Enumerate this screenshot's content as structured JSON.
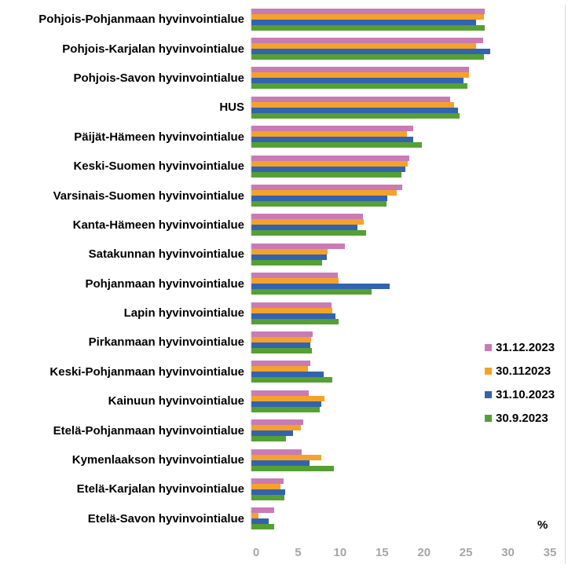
{
  "chart_data": {
    "type": "bar",
    "orientation": "horizontal",
    "title": "",
    "xlabel": "%",
    "ylabel": "",
    "xlim": [
      0,
      35
    ],
    "xticks": [
      0,
      5,
      10,
      15,
      20,
      25,
      30,
      35
    ],
    "grid": false,
    "legend_position": "right-middle",
    "categories": [
      "Pohjois-Pohjanmaan hyvinvointialue",
      "Pohjois-Karjalan hyvinvointialue",
      "Pohjois-Savon hyvinvointialue",
      "HUS",
      "Päijät-Hämeen hyvinvointialue",
      "Keski-Suomen hyvinvointialue",
      "Varsinais-Suomen hyvinvointialue",
      "Kanta-Hämeen hyvinvointialue",
      "Satakunnan hyvinvointialue",
      "Pohjanmaan hyvinvointialue",
      "Lapin hyvinvointialue",
      "Pirkanmaan hyvinvointialue",
      "Keski-Pohjanmaan hyvinvointialue",
      "Kainuun hyvinvointialue",
      "Etelä-Pohjanmaan hyvinvointialue",
      "Kymenlaakson hyvinvointialue",
      "Etelä-Karjalan hyvinvointialue",
      "Etelä-Savon hyvinvointialue"
    ],
    "series": [
      {
        "name": "31.12.2023",
        "color": "#c97bb5",
        "values": [
          27.8,
          27.6,
          25.9,
          23.7,
          19.3,
          18.8,
          18.0,
          13.3,
          11.1,
          10.3,
          9.5,
          7.3,
          7.0,
          6.8,
          6.2,
          6.0,
          3.8,
          2.7
        ]
      },
      {
        "name": "30.112023",
        "color": "#f5a228",
        "values": [
          27.7,
          26.8,
          25.9,
          24.1,
          18.5,
          18.6,
          17.3,
          13.4,
          9.1,
          10.4,
          9.6,
          7.1,
          6.7,
          8.7,
          5.9,
          8.3,
          3.5,
          0.8
        ]
      },
      {
        "name": "31.10.2023",
        "color": "#3263af",
        "values": [
          26.8,
          28.4,
          25.3,
          24.6,
          19.3,
          18.3,
          16.2,
          12.6,
          9.0,
          16.5,
          10.0,
          7.0,
          8.6,
          8.3,
          5.0,
          6.9,
          4.0,
          2.1
        ]
      },
      {
        "name": "30.9.2023",
        "color": "#55a033",
        "values": [
          27.8,
          27.7,
          25.7,
          24.8,
          20.3,
          17.9,
          16.1,
          13.7,
          8.4,
          14.3,
          10.4,
          7.2,
          9.6,
          8.1,
          4.1,
          9.8,
          3.9,
          2.7
        ]
      }
    ]
  },
  "colors": {
    "tick_text": "#a6a6a6",
    "plot_border": "#d9d9d9",
    "label_text": "#000000",
    "background": "#ffffff"
  }
}
